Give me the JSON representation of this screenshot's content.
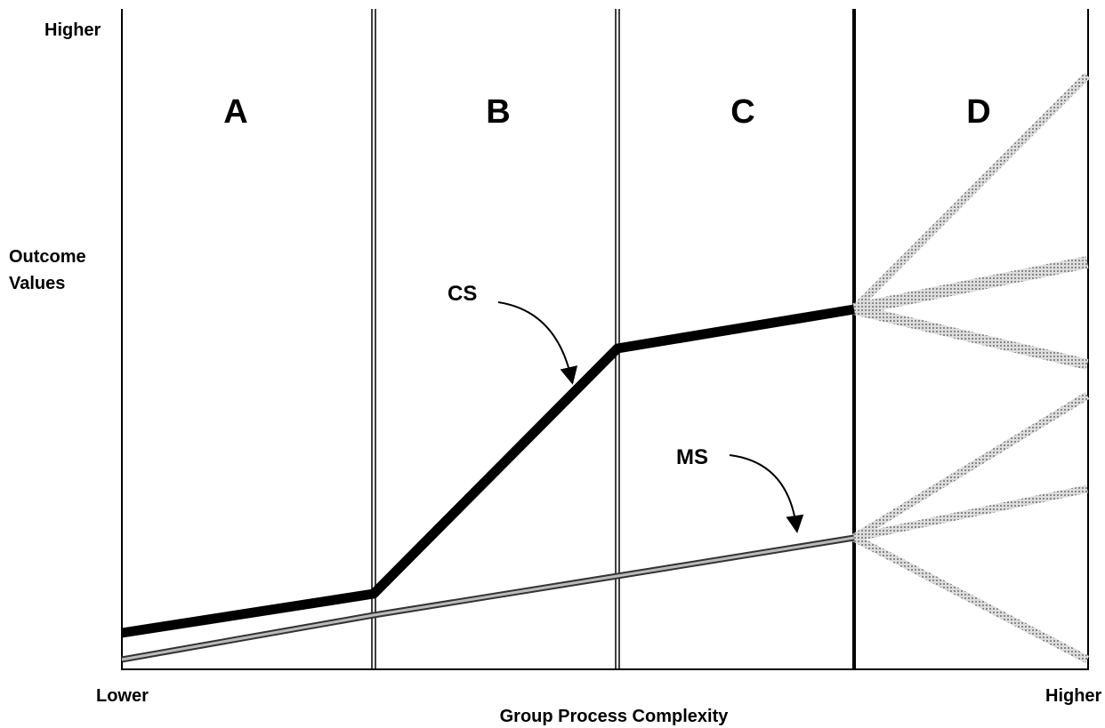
{
  "y_axis": {
    "top_label": "Higher",
    "label": [
      "Outcome",
      "Values"
    ]
  },
  "x_axis": {
    "left_label": "Lower",
    "right_label": "Higher",
    "label": "Group Process Complexity"
  },
  "regions": [
    "A",
    "B",
    "C",
    "D"
  ],
  "curves": [
    {
      "label": "CS"
    },
    {
      "label": "MS"
    }
  ]
}
